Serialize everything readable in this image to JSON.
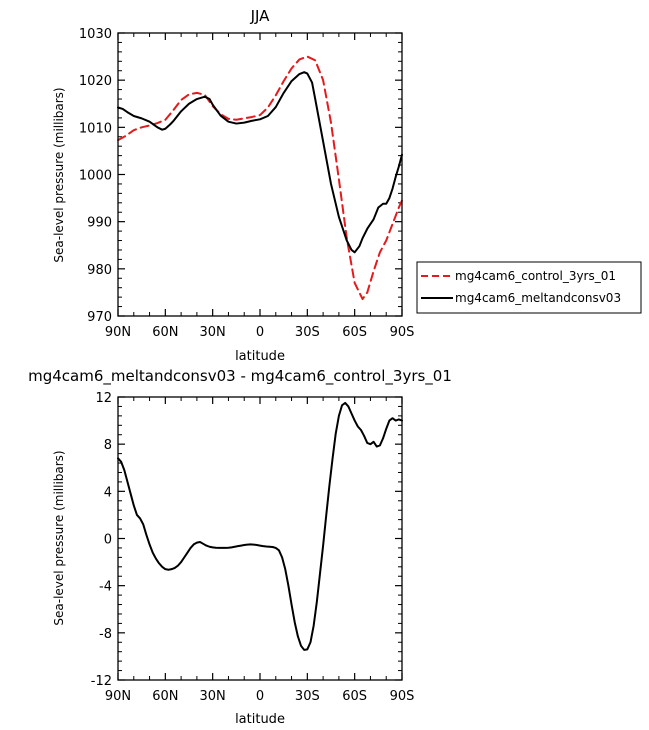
{
  "chart_data": [
    {
      "type": "line",
      "title": "JJA",
      "xlabel": "latitude",
      "ylabel": "Sea-level pressure (millibars)",
      "xlim": [
        90,
        -90
      ],
      "ylim": [
        970,
        1030
      ],
      "xticks": [
        90,
        60,
        30,
        0,
        -30,
        -60,
        -90
      ],
      "xtick_labels": [
        "90N",
        "60N",
        "30N",
        "0",
        "30S",
        "60S",
        "90S"
      ],
      "yticks": [
        970,
        980,
        990,
        1000,
        1010,
        1020,
        1030
      ],
      "ytick_labels": [
        "970",
        "980",
        "990",
        "1000",
        "1010",
        "1020",
        "1030"
      ],
      "legend_position": "right",
      "series": [
        {
          "name": "mg4cam6_control_3yrs_01",
          "color": "#e41a1c",
          "dash": "dashed",
          "x": [
            90,
            85,
            80,
            75,
            70,
            65,
            60,
            55,
            50,
            45,
            40,
            35,
            30,
            25,
            20,
            15,
            10,
            5,
            0,
            -5,
            -10,
            -15,
            -20,
            -25,
            -30,
            -35,
            -40,
            -45,
            -50,
            -55,
            -60,
            -65,
            -68,
            -72,
            -76,
            -80,
            -84,
            -88,
            -90
          ],
          "y": [
            1007.3,
            1008.2,
            1009.4,
            1010.0,
            1010.4,
            1010.9,
            1011.6,
            1013.6,
            1015.8,
            1017.0,
            1017.3,
            1016.9,
            1014.5,
            1012.8,
            1011.8,
            1011.6,
            1011.9,
            1012.2,
            1012.6,
            1014.2,
            1016.8,
            1019.8,
            1022.5,
            1024.4,
            1025.0,
            1024.2,
            1020.0,
            1011.0,
            999.0,
            986.5,
            977.0,
            973.6,
            975.0,
            979.5,
            983.5,
            986.0,
            989.5,
            993.0,
            994.5
          ]
        },
        {
          "name": "mg4cam6_meltandconsv03",
          "color": "#000000",
          "dash": "solid",
          "x": [
            90,
            87,
            84,
            80,
            75,
            70,
            65,
            62,
            60,
            57,
            55,
            50,
            45,
            40,
            35,
            32,
            30,
            25,
            20,
            15,
            10,
            5,
            0,
            -5,
            -10,
            -15,
            -20,
            -25,
            -28,
            -30,
            -33,
            -35,
            -40,
            -45,
            -50,
            -55,
            -58,
            -60,
            -63,
            -65,
            -68,
            -72,
            -75,
            -78,
            -80,
            -82,
            -84,
            -86,
            -88,
            -90
          ],
          "y": [
            1014.2,
            1013.9,
            1013.2,
            1012.4,
            1011.9,
            1011.2,
            1010.0,
            1009.5,
            1009.7,
            1010.6,
            1011.3,
            1013.4,
            1015.0,
            1016.0,
            1016.5,
            1016.0,
            1014.8,
            1012.5,
            1011.2,
            1010.8,
            1011.0,
            1011.4,
            1011.7,
            1012.4,
            1014.3,
            1017.3,
            1019.8,
            1021.3,
            1021.7,
            1021.4,
            1019.5,
            1016.0,
            1007.0,
            998.0,
            991.0,
            986.0,
            984.0,
            983.5,
            984.8,
            986.5,
            988.5,
            990.5,
            993.0,
            993.8,
            993.8,
            995.0,
            997.0,
            999.5,
            1001.7,
            1004.2
          ]
        }
      ]
    },
    {
      "type": "line",
      "title": "mg4cam6_meltandconsv03 - mg4cam6_control_3yrs_01",
      "xlabel": "latitude",
      "ylabel": "Sea-level pressure (millibars)",
      "xlim": [
        90,
        -90
      ],
      "ylim": [
        -12,
        12
      ],
      "xticks": [
        90,
        60,
        30,
        0,
        -30,
        -60,
        -90
      ],
      "xtick_labels": [
        "90N",
        "60N",
        "30N",
        "0",
        "30S",
        "60S",
        "90S"
      ],
      "yticks": [
        -12,
        -8,
        -4,
        0,
        4,
        8,
        12
      ],
      "ytick_labels": [
        "-12",
        "-8",
        "-4",
        "0",
        "4",
        "8",
        "12"
      ],
      "series": [
        {
          "color": "#000000",
          "dash": "solid",
          "x": [
            90,
            88,
            86,
            84,
            82,
            80,
            78,
            76,
            74,
            72,
            70,
            68,
            66,
            64,
            62,
            60,
            58,
            56,
            54,
            52,
            50,
            48,
            46,
            44,
            42,
            40,
            38,
            36,
            34,
            32,
            30,
            28,
            26,
            24,
            22,
            20,
            18,
            16,
            14,
            12,
            10,
            8,
            6,
            4,
            2,
            0,
            -2,
            -4,
            -6,
            -8,
            -10,
            -12,
            -14,
            -16,
            -18,
            -20,
            -22,
            -24,
            -26,
            -28,
            -30,
            -32,
            -34,
            -36,
            -38,
            -40,
            -42,
            -44,
            -46,
            -48,
            -50,
            -52,
            -54,
            -56,
            -58,
            -60,
            -62,
            -64,
            -66,
            -68,
            -70,
            -72,
            -74,
            -76,
            -78,
            -80,
            -82,
            -84,
            -86,
            -88,
            -90
          ],
          "y": [
            6.8,
            6.5,
            5.8,
            4.8,
            3.8,
            2.8,
            2.0,
            1.7,
            1.2,
            0.3,
            -0.5,
            -1.2,
            -1.7,
            -2.1,
            -2.4,
            -2.6,
            -2.65,
            -2.6,
            -2.5,
            -2.3,
            -2.0,
            -1.6,
            -1.2,
            -0.8,
            -0.5,
            -0.35,
            -0.3,
            -0.45,
            -0.6,
            -0.7,
            -0.75,
            -0.78,
            -0.8,
            -0.8,
            -0.8,
            -0.78,
            -0.75,
            -0.7,
            -0.65,
            -0.6,
            -0.55,
            -0.52,
            -0.5,
            -0.52,
            -0.55,
            -0.6,
            -0.65,
            -0.68,
            -0.7,
            -0.72,
            -0.8,
            -1.0,
            -1.6,
            -2.6,
            -4.0,
            -5.6,
            -7.1,
            -8.3,
            -9.1,
            -9.45,
            -9.4,
            -8.8,
            -7.4,
            -5.4,
            -3.0,
            -0.6,
            2.0,
            4.5,
            6.8,
            8.9,
            10.4,
            11.3,
            11.5,
            11.2,
            10.6,
            10.0,
            9.5,
            9.2,
            8.7,
            8.1,
            8.0,
            8.2,
            7.8,
            7.9,
            8.5,
            9.3,
            10.0,
            10.2,
            10.0,
            10.1,
            10.0
          ]
        }
      ]
    }
  ]
}
